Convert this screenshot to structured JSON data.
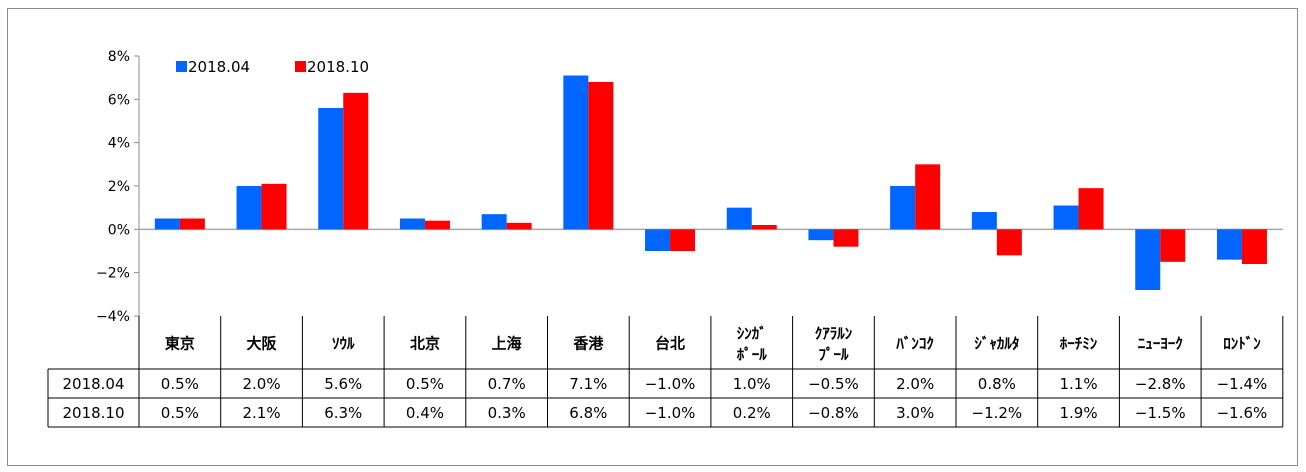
{
  "chart_data": {
    "type": "bar",
    "title": "",
    "xlabel": "",
    "ylabel": "",
    "categories": [
      [
        "東京"
      ],
      [
        "大阪"
      ],
      [
        "ｿｳﾙ"
      ],
      [
        "北京"
      ],
      [
        "上海"
      ],
      [
        "香港"
      ],
      [
        "台北"
      ],
      [
        "ｼﾝｶﾞ",
        "ﾎﾟｰﾙ"
      ],
      [
        "ｸｱﾗﾙﾝ",
        "ﾌﾟｰﾙ"
      ],
      [
        "ﾊﾞﾝｺｸ"
      ],
      [
        "ｼﾞｬｶﾙﾀ"
      ],
      [
        "ﾎｰﾁﾐﾝ"
      ],
      [
        "ﾆｭｰﾖｰｸ"
      ],
      [
        "ﾛﾝﾄﾞﾝ"
      ]
    ],
    "series": [
      {
        "name": "2018.04",
        "color": "#0066ff",
        "values": [
          0.5,
          2.0,
          5.6,
          0.5,
          0.7,
          7.1,
          -1.0,
          1.0,
          -0.5,
          2.0,
          0.8,
          1.1,
          -2.8,
          -1.4
        ],
        "labels": [
          "0.5%",
          "2.0%",
          "5.6%",
          "0.5%",
          "0.7%",
          "7.1%",
          "−1.0%",
          "1.0%",
          "−0.5%",
          "2.0%",
          "0.8%",
          "1.1%",
          "−2.8%",
          "−1.4%"
        ]
      },
      {
        "name": "2018.10",
        "color": "#ff0000",
        "values": [
          0.5,
          2.1,
          6.3,
          0.4,
          0.3,
          6.8,
          -1.0,
          0.2,
          -0.8,
          3.0,
          -1.2,
          1.9,
          -1.5,
          -1.6
        ],
        "labels": [
          "0.5%",
          "2.1%",
          "6.3%",
          "0.4%",
          "0.3%",
          "6.8%",
          "−1.0%",
          "0.2%",
          "−0.8%",
          "3.0%",
          "−1.2%",
          "1.9%",
          "−1.5%",
          "−1.6%"
        ]
      }
    ],
    "ylim": [
      -4,
      8
    ],
    "yticks": [
      -4,
      -2,
      0,
      2,
      4,
      6,
      8
    ],
    "ytick_labels": [
      "−4%",
      "−2%",
      "0%",
      "2%",
      "4%",
      "6%",
      "8%"
    ],
    "grid": false,
    "legend": "top-left",
    "data_table": true
  }
}
